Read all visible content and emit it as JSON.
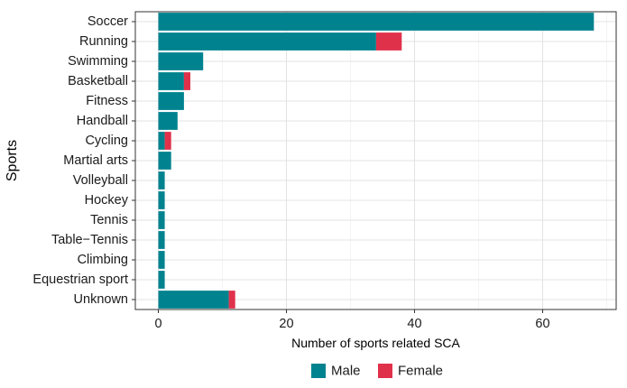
{
  "chart_data": {
    "type": "bar",
    "orientation": "horizontal",
    "stacked": true,
    "title": "",
    "xlabel": "Number of sports related SCA",
    "ylabel": "Sports",
    "categories": [
      "Soccer",
      "Running",
      "Swimming",
      "Basketball",
      "Fitness",
      "Handball",
      "Cycling",
      "Martial arts",
      "Volleyball",
      "Hockey",
      "Tennis",
      "Table−Tennis",
      "Climbing",
      "Equestrian sport",
      "Unknown"
    ],
    "series": [
      {
        "name": "Male",
        "color": "#00838f",
        "values": [
          68,
          34,
          7,
          4,
          4,
          3,
          1,
          2,
          1,
          1,
          1,
          1,
          1,
          1,
          11
        ]
      },
      {
        "name": "Female",
        "color": "#e0314b",
        "values": [
          0,
          4,
          0,
          1,
          0,
          0,
          1,
          0,
          0,
          0,
          0,
          0,
          0,
          0,
          1
        ]
      }
    ],
    "xlim": [
      0,
      72
    ],
    "xticks": [
      0,
      20,
      40,
      60
    ],
    "grid": true,
    "legend_position": "bottom"
  }
}
